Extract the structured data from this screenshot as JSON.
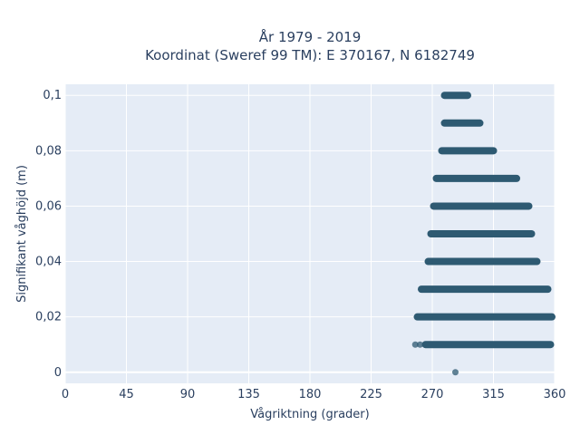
{
  "chart_data": {
    "type": "scatter",
    "title": "År 1979 - 2019",
    "subtitle": "Koordinat (Sweref 99 TM): E 370167, N 6182749",
    "xlabel": "Vågriktning (grader)",
    "ylabel": "Signifikant våghöjd (m)",
    "xlim": [
      0,
      360
    ],
    "ylim": [
      -0.004,
      0.104
    ],
    "x_ticks": [
      0,
      45,
      90,
      135,
      180,
      225,
      270,
      315,
      360
    ],
    "x_tick_labels": [
      "0",
      "45",
      "90",
      "135",
      "180",
      "225",
      "270",
      "315",
      "360"
    ],
    "y_ticks": [
      0,
      0.02,
      0.04,
      0.06,
      0.08,
      0.1
    ],
    "y_tick_labels": [
      "0",
      "0,02",
      "0,04",
      "0,06",
      "0,08",
      "0,1"
    ],
    "grid": true,
    "series": [
      {
        "marker_color": "#2e5a72",
        "bands": [
          {
            "y": 0.1,
            "x_from": 279,
            "x_to": 296
          },
          {
            "y": 0.09,
            "x_from": 279,
            "x_to": 305
          },
          {
            "y": 0.08,
            "x_from": 277,
            "x_to": 315
          },
          {
            "y": 0.07,
            "x_from": 273,
            "x_to": 332
          },
          {
            "y": 0.06,
            "x_from": 271,
            "x_to": 341
          },
          {
            "y": 0.05,
            "x_from": 269,
            "x_to": 343
          },
          {
            "y": 0.04,
            "x_from": 267,
            "x_to": 347
          },
          {
            "y": 0.03,
            "x_from": 262,
            "x_to": 355
          },
          {
            "y": 0.02,
            "x_from": 259,
            "x_to": 358
          },
          {
            "y": 0.01,
            "x_from": 265,
            "x_to": 357
          }
        ],
        "points": [
          {
            "x": 257.5,
            "y": 0.01
          },
          {
            "x": 261,
            "y": 0.01
          },
          {
            "x": 287,
            "y": 0.0
          }
        ]
      }
    ]
  }
}
